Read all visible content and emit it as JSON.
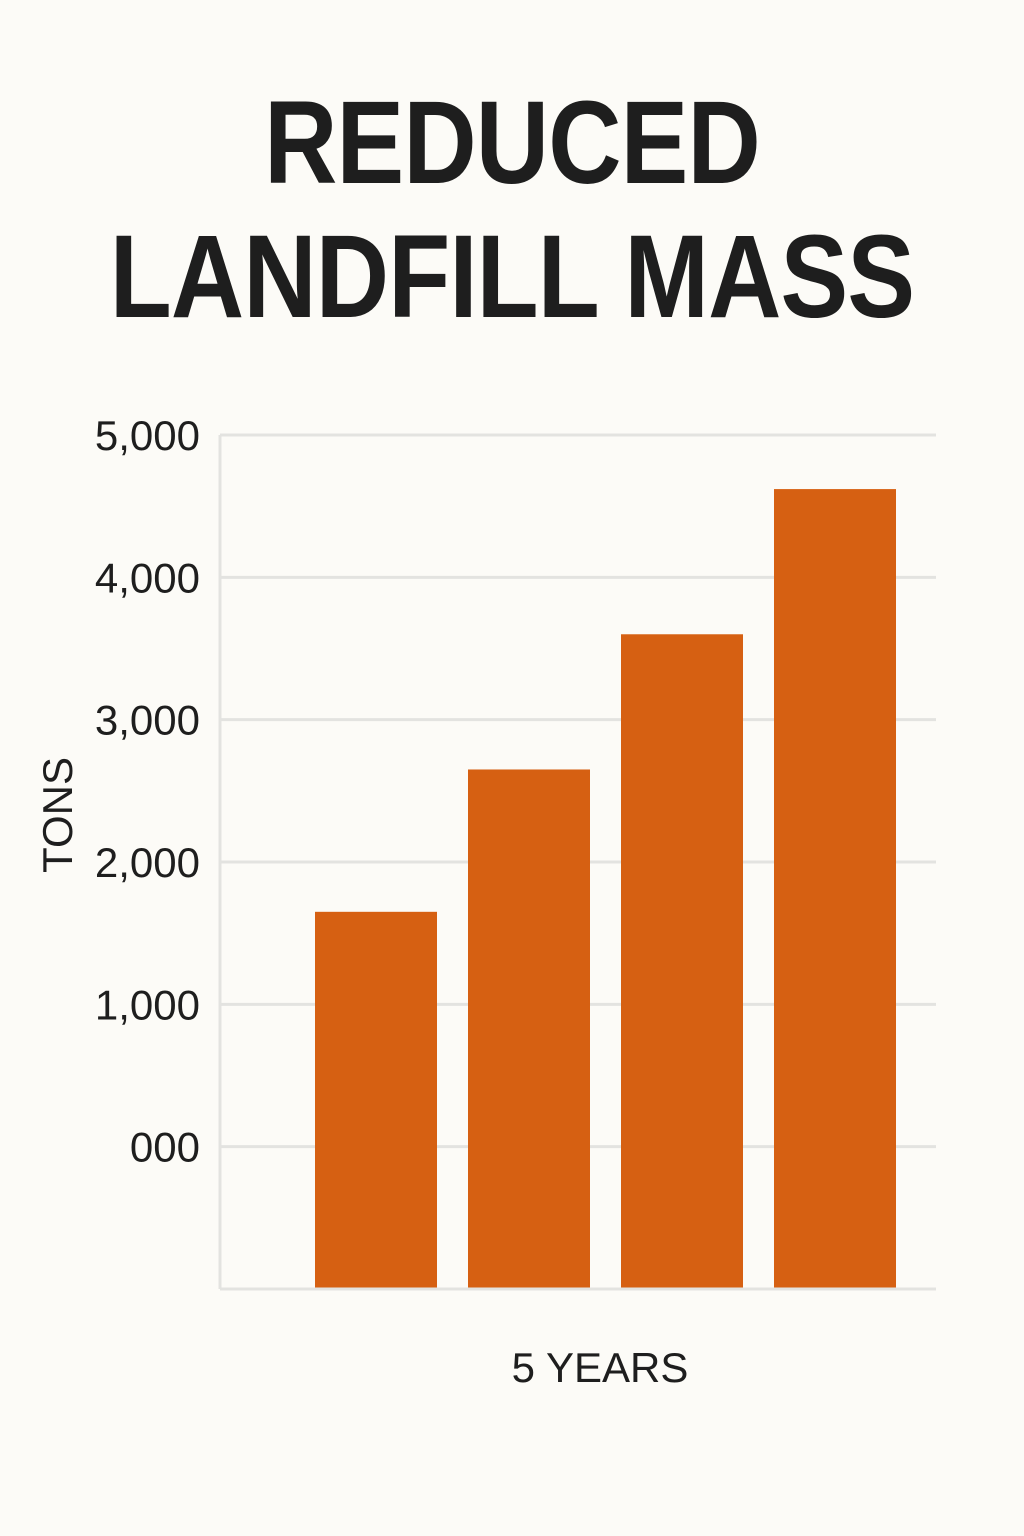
{
  "chart_data": {
    "type": "bar",
    "title_lines": [
      "REDUCED",
      "LANDFILL MASS"
    ],
    "xlabel": "5 YEARS",
    "ylabel": "TONS",
    "yticks": [
      {
        "value": 0,
        "label": "000"
      },
      {
        "value": 1000,
        "label": "1,000"
      },
      {
        "value": 2000,
        "label": "2,000"
      },
      {
        "value": 3000,
        "label": "3,000"
      },
      {
        "value": 4000,
        "label": "4,000"
      },
      {
        "value": 5000,
        "label": "5,000"
      }
    ],
    "ylim": [
      -1000,
      5000
    ],
    "values": [
      1650,
      2650,
      3600,
      4620
    ],
    "grid": true,
    "bar_color": "#d66012",
    "grid_color": "#e3e3e0"
  }
}
